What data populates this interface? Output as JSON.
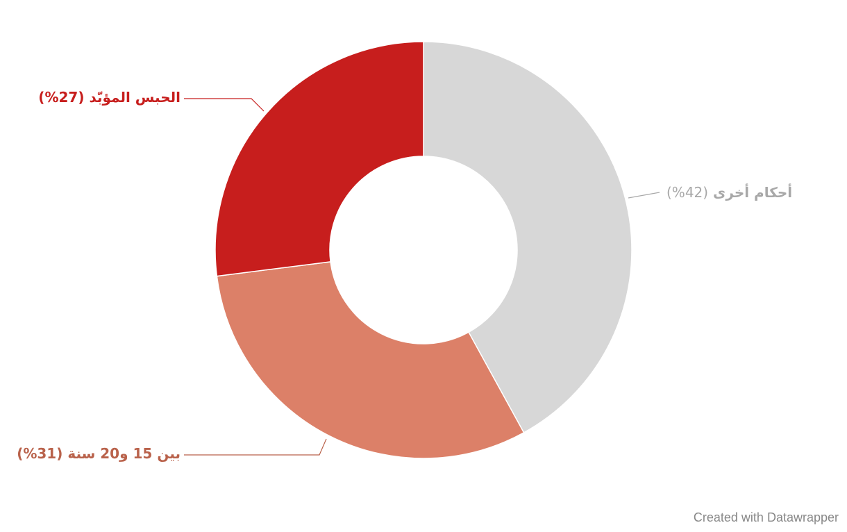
{
  "chart_data": {
    "type": "donut",
    "categories": [
      "أحكام أخرى",
      "بين 15 و20 سنة",
      "الحبس المؤبّد"
    ],
    "values": [
      42,
      31,
      27
    ],
    "value_labels": [
      "(42%)",
      "(31%)",
      "(27%)"
    ],
    "colors": [
      "#d7d7d7",
      "#dc8068",
      "#c71e1d"
    ],
    "label_colors": [
      "#a8a8a8",
      "#b9624b",
      "#c71e1d"
    ],
    "credit": "Created with Datawrapper"
  }
}
